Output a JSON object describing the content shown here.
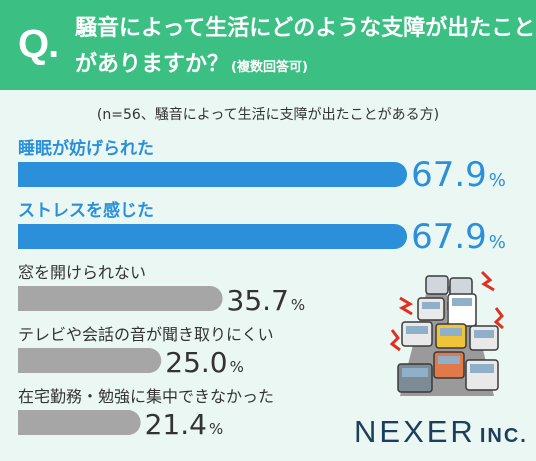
{
  "header": {
    "q_letter": "Q",
    "q_dot": ".",
    "question_line1": "騒音によって生活にどのような支障が出たこと",
    "question_line2": "がありますか？",
    "question_note": "(複数回答可)"
  },
  "subtitle": "(n=56、騒音によって生活に支障が出たことがある方)",
  "colors": {
    "header_bg": "#3bbf83",
    "highlight_bar": "#2b90d9",
    "normal_bar": "#a6a6a6",
    "highlight_label": "#2b90d9",
    "normal_label": "#333333"
  },
  "chart_data": {
    "type": "bar",
    "orientation": "horizontal",
    "unit": "%",
    "categories": [
      "睡眠が妨げられた",
      "ストレスを感じた",
      "窓を開けられない",
      "テレビや会話の音が聞き取りにくい",
      "在宅勤務・勉強に集中できなかった"
    ],
    "values": [
      67.9,
      67.9,
      35.7,
      25.0,
      21.4
    ],
    "value_labels": [
      "67.9",
      "67.9",
      "35.7",
      "25.0",
      "21.4"
    ],
    "highlighted": [
      true,
      true,
      false,
      false,
      false
    ],
    "xlim": [
      0,
      100
    ]
  },
  "illustration": {
    "icon": "traffic-jam-cars-icon"
  },
  "logo": {
    "name": "NEXER",
    "suffix": "INC."
  }
}
